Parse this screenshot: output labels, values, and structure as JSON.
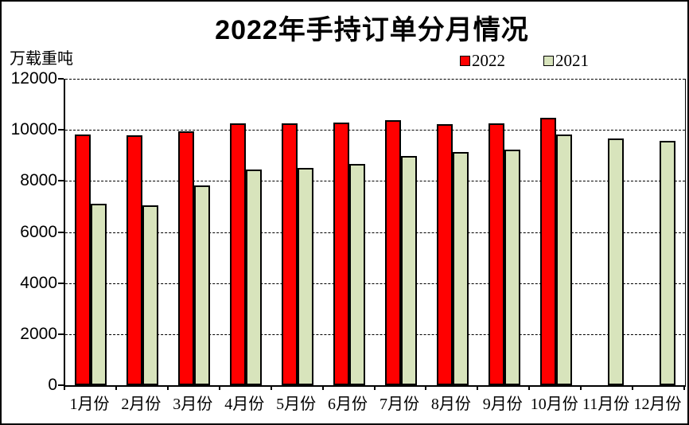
{
  "title": "2022年手持订单分月情况",
  "unit_label": "万载重吨",
  "legend": {
    "items": [
      {
        "label": "2022",
        "color": "#FF0000"
      },
      {
        "label": "2021",
        "color": "#D8E4BC"
      }
    ]
  },
  "colors": {
    "bar_2022": "#FF0000",
    "bar_2021": "#D8E4BC",
    "bar_border": "#000000",
    "axis": "#000000",
    "gridline": "#000000",
    "background": "#FFFFFF"
  },
  "chart_data": {
    "type": "bar",
    "title": "2022年手持订单分月情况",
    "ylabel": "万载重吨",
    "xlabel": "",
    "categories": [
      "1月份",
      "2月份",
      "3月份",
      "4月份",
      "5月份",
      "6月份",
      "7月份",
      "8月份",
      "9月份",
      "10月份",
      "11月份",
      "12月份"
    ],
    "series": [
      {
        "name": "2022",
        "color": "#FF0000",
        "values": [
          9810,
          9780,
          9930,
          10260,
          10250,
          10290,
          10370,
          10220,
          10260,
          10470,
          null,
          null
        ]
      },
      {
        "name": "2021",
        "color": "#D8E4BC",
        "values": [
          7100,
          7040,
          7820,
          8450,
          8500,
          8670,
          8970,
          9130,
          9230,
          9830,
          9650,
          9570
        ]
      }
    ],
    "ylim": [
      0,
      12000
    ],
    "yticks": [
      0,
      2000,
      4000,
      6000,
      8000,
      10000,
      12000
    ],
    "grid": "horizontal-dashed",
    "legend_position": "top-right"
  }
}
